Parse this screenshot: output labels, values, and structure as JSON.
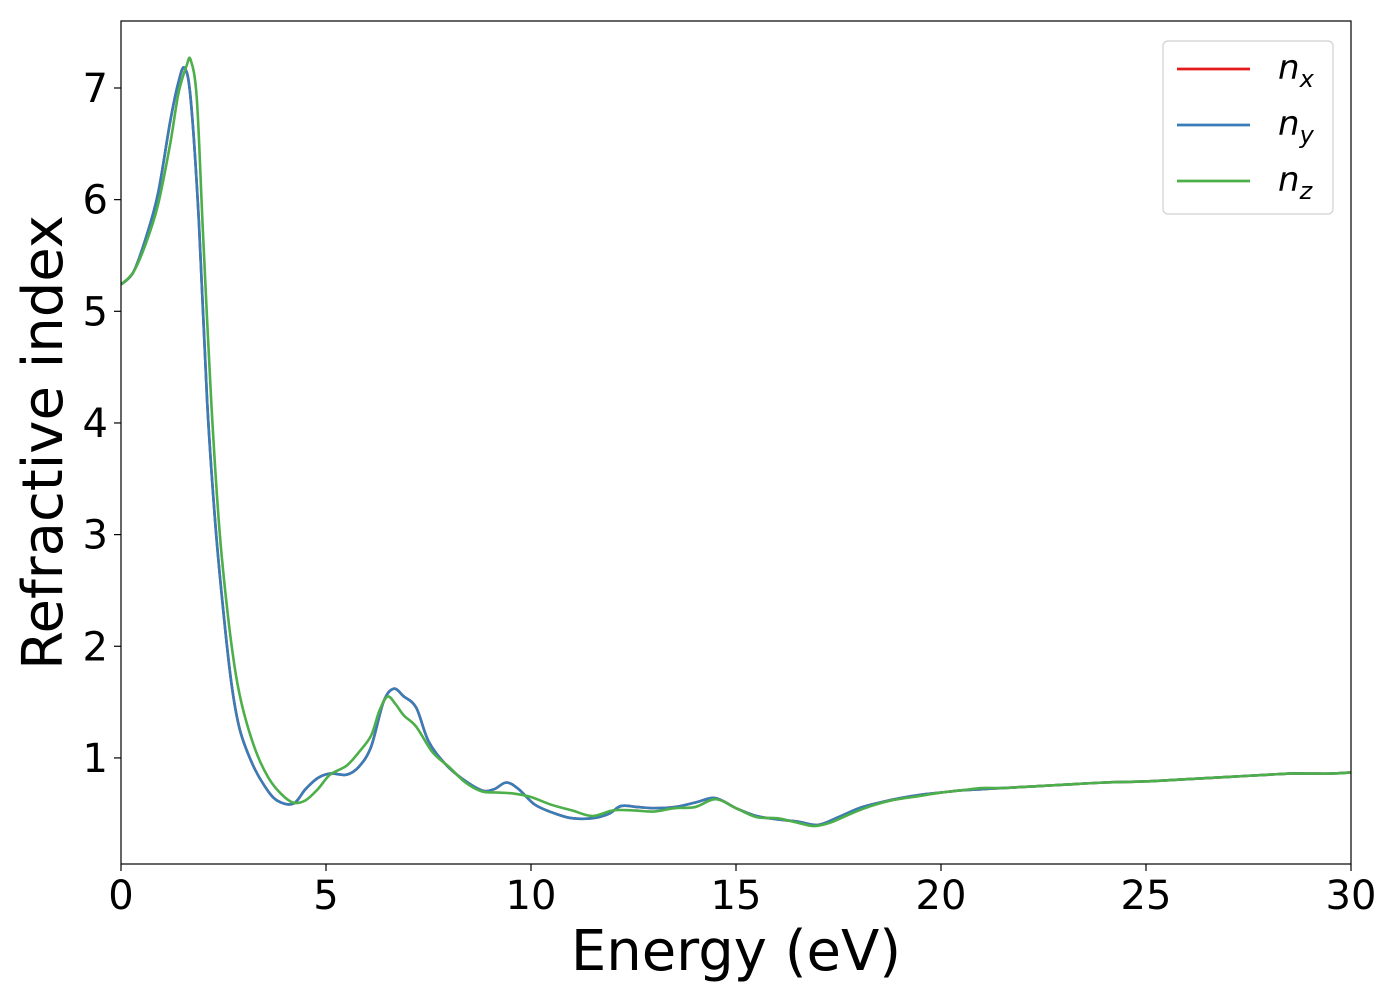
{
  "chart_data": {
    "type": "line",
    "title": "",
    "xlabel": "Energy (eV)",
    "ylabel": "Refractive index",
    "xlim": [
      0,
      30
    ],
    "ylim": [
      0.05,
      7.6
    ],
    "xticks": [
      0,
      5,
      10,
      15,
      20,
      25,
      30
    ],
    "yticks": [
      1,
      2,
      3,
      4,
      5,
      6,
      7
    ],
    "grid": false,
    "legend_position": "top-right",
    "series": [
      {
        "name": "n_x",
        "label_main": "n",
        "label_sub": "x",
        "color": "#e41a1c",
        "x": [
          0,
          0.3,
          0.6,
          0.9,
          1.2,
          1.4,
          1.55,
          1.7,
          1.9,
          2.1,
          2.3,
          2.5,
          2.7,
          2.9,
          3.2,
          3.5,
          3.8,
          4.2,
          4.5,
          4.8,
          5.1,
          5.5,
          5.8,
          6.1,
          6.4,
          6.65,
          6.9,
          7.2,
          7.5,
          7.9,
          8.3,
          8.8,
          9.1,
          9.4,
          9.7,
          10.1,
          10.6,
          11.0,
          11.5,
          11.9,
          12.2,
          12.6,
          13.0,
          13.5,
          14.0,
          14.5,
          15.0,
          15.5,
          16.0,
          16.5,
          17.0,
          17.5,
          18.0,
          18.5,
          19.0,
          19.5,
          20.0,
          20.5,
          21.0,
          21.5,
          22.0,
          22.5,
          23.0,
          24.0,
          25.0,
          26.0,
          27.0,
          28.0,
          28.5,
          29.0,
          29.5,
          30.0
        ],
        "y": [
          5.24,
          5.35,
          5.65,
          6.05,
          6.7,
          7.05,
          7.18,
          6.9,
          5.8,
          4.2,
          3.1,
          2.3,
          1.65,
          1.25,
          0.95,
          0.75,
          0.62,
          0.59,
          0.72,
          0.82,
          0.86,
          0.85,
          0.92,
          1.1,
          1.5,
          1.62,
          1.55,
          1.45,
          1.15,
          0.95,
          0.82,
          0.71,
          0.72,
          0.78,
          0.72,
          0.58,
          0.5,
          0.46,
          0.46,
          0.5,
          0.57,
          0.56,
          0.55,
          0.56,
          0.6,
          0.64,
          0.55,
          0.48,
          0.45,
          0.43,
          0.4,
          0.47,
          0.55,
          0.6,
          0.64,
          0.67,
          0.69,
          0.71,
          0.72,
          0.73,
          0.74,
          0.75,
          0.76,
          0.78,
          0.79,
          0.81,
          0.83,
          0.85,
          0.86,
          0.86,
          0.86,
          0.87
        ]
      },
      {
        "name": "n_y",
        "label_main": "n",
        "label_sub": "y",
        "color": "#377eb8",
        "x": [
          0,
          0.3,
          0.6,
          0.9,
          1.2,
          1.4,
          1.55,
          1.7,
          1.9,
          2.1,
          2.3,
          2.5,
          2.7,
          2.9,
          3.2,
          3.5,
          3.8,
          4.2,
          4.5,
          4.8,
          5.1,
          5.5,
          5.8,
          6.1,
          6.4,
          6.65,
          6.9,
          7.2,
          7.5,
          7.9,
          8.3,
          8.8,
          9.1,
          9.4,
          9.7,
          10.1,
          10.6,
          11.0,
          11.5,
          11.9,
          12.2,
          12.6,
          13.0,
          13.5,
          14.0,
          14.5,
          15.0,
          15.5,
          16.0,
          16.5,
          17.0,
          17.5,
          18.0,
          18.5,
          19.0,
          19.5,
          20.0,
          20.5,
          21.0,
          21.5,
          22.0,
          22.5,
          23.0,
          24.0,
          25.0,
          26.0,
          27.0,
          28.0,
          28.5,
          29.0,
          29.5,
          30.0
        ],
        "y": [
          5.24,
          5.35,
          5.65,
          6.05,
          6.7,
          7.05,
          7.18,
          6.9,
          5.8,
          4.2,
          3.1,
          2.3,
          1.65,
          1.25,
          0.95,
          0.75,
          0.62,
          0.59,
          0.72,
          0.82,
          0.86,
          0.85,
          0.92,
          1.1,
          1.5,
          1.62,
          1.55,
          1.45,
          1.15,
          0.95,
          0.82,
          0.71,
          0.72,
          0.78,
          0.72,
          0.58,
          0.5,
          0.46,
          0.46,
          0.5,
          0.57,
          0.56,
          0.55,
          0.56,
          0.6,
          0.64,
          0.55,
          0.48,
          0.45,
          0.43,
          0.4,
          0.47,
          0.55,
          0.6,
          0.64,
          0.67,
          0.69,
          0.71,
          0.72,
          0.73,
          0.74,
          0.75,
          0.76,
          0.78,
          0.79,
          0.81,
          0.83,
          0.85,
          0.86,
          0.86,
          0.86,
          0.87
        ]
      },
      {
        "name": "n_z",
        "label_main": "n",
        "label_sub": "z",
        "color": "#4daf4a",
        "x": [
          0,
          0.3,
          0.6,
          0.9,
          1.2,
          1.4,
          1.6,
          1.7,
          1.85,
          2.0,
          2.2,
          2.4,
          2.6,
          2.8,
          3.0,
          3.3,
          3.6,
          3.9,
          4.2,
          4.5,
          4.8,
          5.1,
          5.5,
          5.8,
          6.1,
          6.3,
          6.5,
          6.7,
          6.9,
          7.2,
          7.6,
          8.0,
          8.4,
          8.8,
          9.2,
          9.6,
          10.0,
          10.5,
          11.0,
          11.5,
          12.0,
          12.5,
          13.0,
          13.5,
          14.0,
          14.5,
          15.0,
          15.5,
          16.0,
          16.5,
          16.9,
          17.3,
          17.8,
          18.3,
          18.8,
          19.5,
          20.0,
          20.5,
          21.0,
          21.5,
          22.0,
          22.5,
          23.0,
          24.0,
          25.0,
          26.0,
          27.0,
          28.0,
          28.5,
          29.0,
          29.5,
          30.0
        ],
        "y": [
          5.24,
          5.35,
          5.6,
          5.95,
          6.5,
          6.95,
          7.2,
          7.25,
          6.9,
          5.7,
          4.2,
          3.05,
          2.3,
          1.75,
          1.4,
          1.05,
          0.82,
          0.68,
          0.6,
          0.62,
          0.72,
          0.85,
          0.93,
          1.05,
          1.2,
          1.42,
          1.55,
          1.48,
          1.38,
          1.28,
          1.05,
          0.92,
          0.78,
          0.7,
          0.69,
          0.68,
          0.65,
          0.58,
          0.53,
          0.48,
          0.53,
          0.53,
          0.52,
          0.55,
          0.56,
          0.63,
          0.55,
          0.47,
          0.46,
          0.42,
          0.39,
          0.42,
          0.5,
          0.57,
          0.62,
          0.66,
          0.69,
          0.71,
          0.73,
          0.73,
          0.74,
          0.75,
          0.76,
          0.78,
          0.79,
          0.81,
          0.83,
          0.85,
          0.86,
          0.86,
          0.86,
          0.87
        ]
      }
    ]
  }
}
